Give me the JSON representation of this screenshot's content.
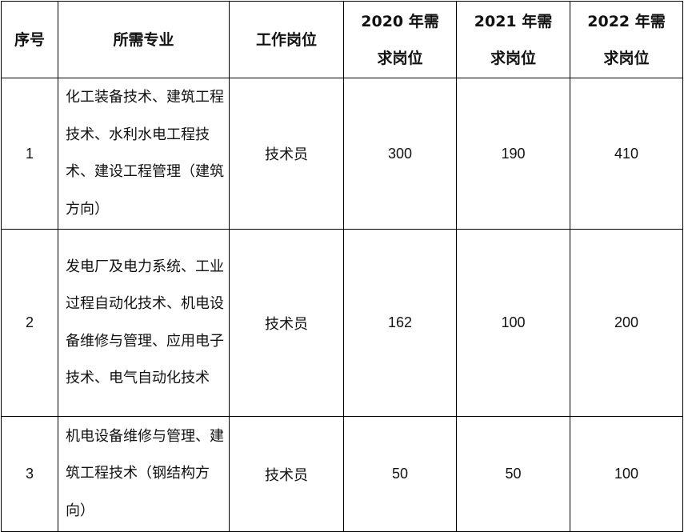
{
  "headers": {
    "index": "序号",
    "major": "所需专业",
    "position": "工作岗位",
    "y2020": "2020 年需求岗位",
    "y2021": "2021 年需求岗位",
    "y2022": "2022 年需求岗位"
  },
  "rows": [
    {
      "index": "1",
      "major": "化工装备技术、建筑工程技术、水利水电工程技术、建设工程管理（建筑方向）",
      "position": "技术员",
      "y2020": "300",
      "y2021": "190",
      "y2022": "410"
    },
    {
      "index": "2",
      "major": "发电厂及电力系统、工业过程自动化技术、机电设备维修与管理、应用电子技术、电气自动化技术",
      "position": "技术员",
      "y2020": "162",
      "y2021": "100",
      "y2022": "200"
    },
    {
      "index": "3",
      "major": "机电设备维修与管理、建筑工程技术（钢结构方向）",
      "position": "技术员",
      "y2020": "50",
      "y2021": "50",
      "y2022": "100"
    }
  ]
}
